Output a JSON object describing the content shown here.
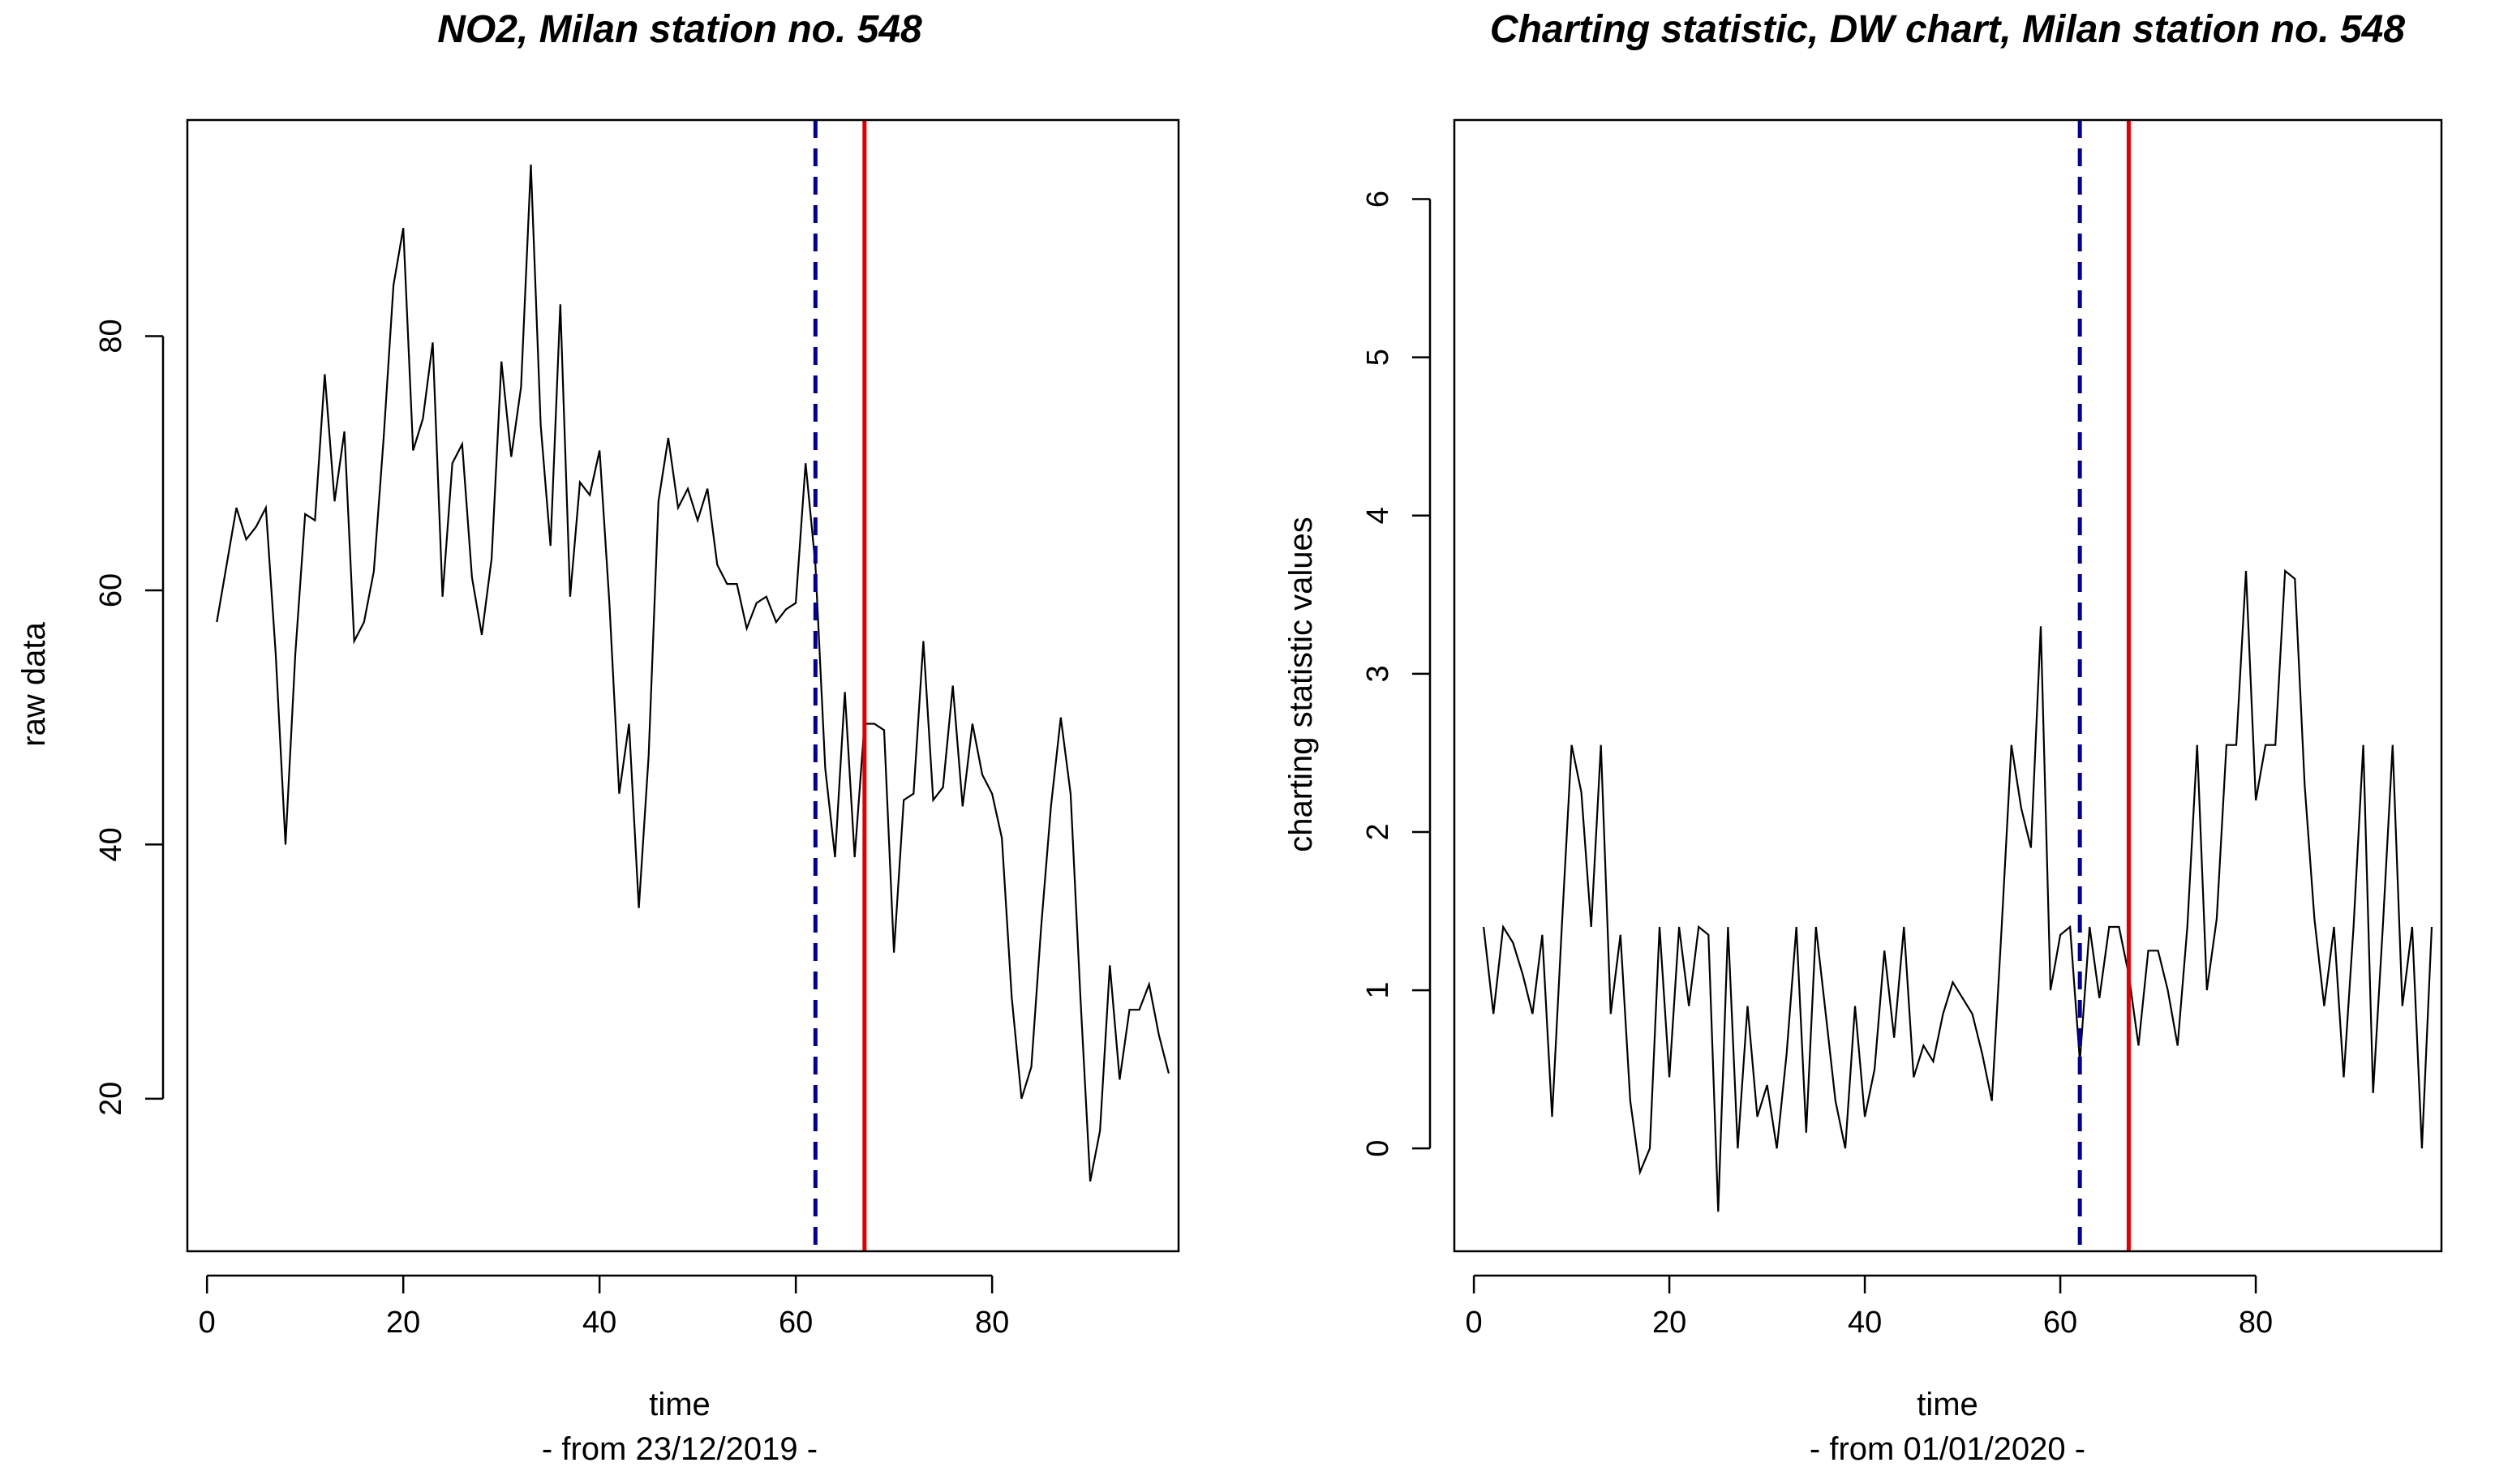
{
  "chart_data": [
    {
      "type": "line",
      "title": "NO2, Milan station no. 548",
      "xlabel": "time",
      "xlabel_sub": "- from 23/12/2019 -",
      "ylabel": "raw data",
      "xlim": [
        -2,
        99
      ],
      "ylim": [
        8,
        97
      ],
      "xticks": [
        0,
        20,
        40,
        60,
        80
      ],
      "yticks": [
        20,
        40,
        60,
        80
      ],
      "x": [
        1,
        2,
        3,
        4,
        5,
        6,
        7,
        8,
        9,
        10,
        11,
        12,
        13,
        14,
        15,
        16,
        17,
        18,
        19,
        20,
        21,
        22,
        23,
        24,
        25,
        26,
        27,
        28,
        29,
        30,
        31,
        32,
        33,
        34,
        35,
        36,
        37,
        38,
        39,
        40,
        41,
        42,
        43,
        44,
        45,
        46,
        47,
        48,
        49,
        50,
        51,
        52,
        53,
        54,
        55,
        56,
        57,
        58,
        59,
        60,
        61,
        62,
        63,
        64,
        65,
        66,
        67,
        68,
        69,
        70,
        71,
        72,
        73,
        74,
        75,
        76,
        77,
        78,
        79,
        80,
        81,
        82,
        83,
        84,
        85,
        86,
        87,
        88,
        89,
        90,
        91,
        92,
        93,
        94,
        95,
        96,
        97,
        98
      ],
      "series": [
        {
          "color": "#000000",
          "values": [
            57.5,
            62,
            66.5,
            64,
            65,
            66.5,
            55,
            40,
            55,
            66,
            65.5,
            77,
            67,
            72.5,
            56,
            57.5,
            61.5,
            72,
            84,
            88.5,
            71,
            73.5,
            79.5,
            59.5,
            70,
            71.5,
            61,
            56.5,
            62.5,
            78,
            70.5,
            76,
            93.5,
            73,
            63.5,
            82.5,
            59.5,
            68.5,
            67.5,
            71,
            59,
            44,
            49.5,
            35,
            47,
            67,
            72,
            66.5,
            68,
            65.5,
            68,
            62,
            60.5,
            60.5,
            57,
            59,
            59.5,
            57.5,
            58.5,
            59,
            70,
            62,
            46,
            39,
            52,
            39,
            49.5,
            49.5,
            49,
            31.5,
            43.5,
            44,
            56,
            43.5,
            44.5,
            52.5,
            43,
            49.5,
            45.5,
            44,
            40.5,
            28,
            20,
            22.5,
            33.5,
            43,
            50,
            44,
            28,
            13.5,
            17.5,
            30.5,
            21.5,
            27,
            27,
            29,
            25,
            22
          ]
        }
      ],
      "vlines": [
        {
          "x": 62,
          "color": "#00008b",
          "style": "dashed"
        },
        {
          "x": 67,
          "color": "#e00000",
          "style": "solid"
        }
      ]
    },
    {
      "type": "line",
      "title": "Charting statistic, DW chart, Milan station no. 548",
      "xlabel": "time",
      "xlabel_sub": "- from 01/01/2020 -",
      "ylabel": "charting statistic values",
      "xlim": [
        -2,
        99
      ],
      "ylim": [
        -0.65,
        6.5
      ],
      "xticks": [
        0,
        20,
        40,
        60,
        80
      ],
      "yticks": [
        0,
        1,
        2,
        3,
        4,
        5,
        6
      ],
      "x": [
        1,
        2,
        3,
        4,
        5,
        6,
        7,
        8,
        9,
        10,
        11,
        12,
        13,
        14,
        15,
        16,
        17,
        18,
        19,
        20,
        21,
        22,
        23,
        24,
        25,
        26,
        27,
        28,
        29,
        30,
        31,
        32,
        33,
        34,
        35,
        36,
        37,
        38,
        39,
        40,
        41,
        42,
        43,
        44,
        45,
        46,
        47,
        48,
        49,
        50,
        51,
        52,
        53,
        54,
        55,
        56,
        57,
        58,
        59,
        60,
        61,
        62,
        63,
        64,
        65,
        66,
        67,
        68,
        69,
        70,
        71,
        72,
        73,
        74,
        75,
        76,
        77,
        78,
        79,
        80,
        81,
        82,
        83,
        84,
        85,
        86,
        87,
        88,
        89,
        90,
        91,
        92,
        93,
        94,
        95,
        96,
        97,
        98
      ],
      "series": [
        {
          "color": "#000000",
          "values": [
            1.4,
            0.85,
            1.4,
            1.3,
            1.1,
            0.85,
            1.35,
            0.2,
            1.4,
            2.55,
            2.25,
            1.4,
            2.55,
            0.85,
            1.35,
            0.3,
            -0.15,
            0,
            1.4,
            0.45,
            1.4,
            0.9,
            1.4,
            1.35,
            -0.4,
            1.4,
            0,
            0.9,
            0.2,
            0.4,
            0,
            0.6,
            1.4,
            0.1,
            1.4,
            0.85,
            0.3,
            0,
            0.9,
            0.2,
            0.5,
            1.25,
            0.7,
            1.4,
            0.45,
            0.65,
            0.55,
            0.85,
            1.05,
            0.95,
            0.85,
            0.6,
            0.3,
            1.4,
            2.55,
            2.15,
            1.9,
            3.3,
            1.0,
            1.35,
            1.4,
            0.55,
            1.4,
            0.95,
            1.4,
            1.4,
            1.1,
            0.65,
            1.25,
            1.25,
            1.0,
            0.65,
            1.4,
            2.55,
            1.0,
            1.45,
            2.55,
            2.55,
            3.65,
            2.2,
            2.55,
            2.55,
            3.65,
            3.6,
            2.3,
            1.45,
            0.9,
            1.4,
            0.45,
            1.4,
            2.55,
            0.35,
            1.4,
            2.55,
            0.9,
            1.4,
            0,
            1.4
          ]
        }
      ],
      "vlines": [
        {
          "x": 62,
          "color": "#00008b",
          "style": "dashed"
        },
        {
          "x": 67,
          "color": "#e00000",
          "style": "solid"
        }
      ]
    }
  ]
}
